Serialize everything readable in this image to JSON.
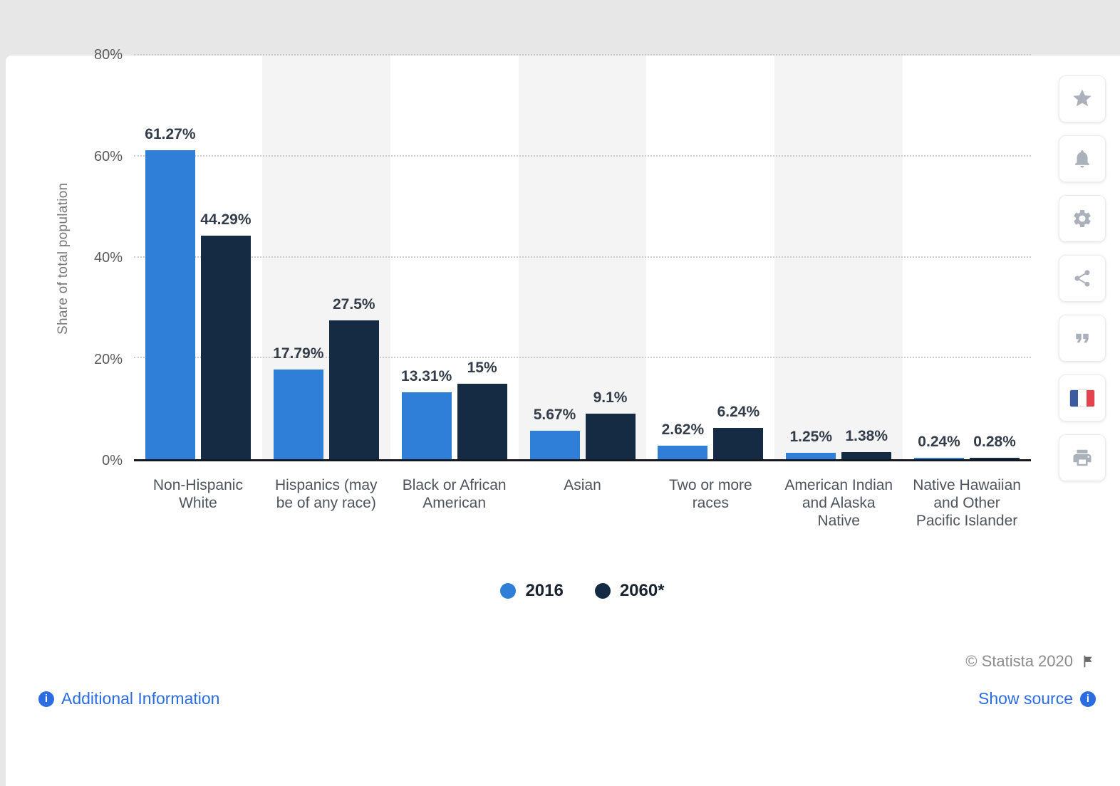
{
  "chart_data": {
    "type": "bar",
    "categories": [
      "Non-Hispanic White",
      "Hispanics (may be of any race)",
      "Black or African American",
      "Asian",
      "Two or more races",
      "American Indian and Alaska Native",
      "Native Hawaiian and Other Pacific Islander"
    ],
    "series": [
      {
        "name": "2016",
        "color": "#2f7ed8",
        "values": [
          61.27,
          17.79,
          13.31,
          5.67,
          2.62,
          1.25,
          0.24
        ],
        "labels": [
          "61.27%",
          "17.79%",
          "13.31%",
          "5.67%",
          "2.62%",
          "1.25%",
          "0.24%"
        ]
      },
      {
        "name": "2060*",
        "color": "#152a43",
        "values": [
          44.29,
          27.5,
          15,
          9.1,
          6.24,
          1.38,
          0.28
        ],
        "labels": [
          "44.29%",
          "27.5%",
          "15%",
          "9.1%",
          "6.24%",
          "1.38%",
          "0.28%"
        ]
      }
    ],
    "xlabel": "",
    "ylabel": "Share of total population",
    "ylim": [
      0,
      80
    ],
    "yticks": [
      {
        "value": 0,
        "label": "0%"
      },
      {
        "value": 20,
        "label": "20%"
      },
      {
        "value": 40,
        "label": "40%"
      },
      {
        "value": 60,
        "label": "60%"
      },
      {
        "value": 80,
        "label": "80%"
      }
    ],
    "grid": "horizontal-dotted",
    "legend_position": "bottom"
  },
  "footer": {
    "copyright": "© Statista 2020",
    "links": {
      "additional_information": "Additional Information",
      "show_source": "Show source"
    }
  },
  "toolbar": {
    "icons": [
      "star-icon",
      "bell-icon",
      "gear-icon",
      "share-icon",
      "quote-icon",
      "flag-fr-icon",
      "print-icon"
    ]
  }
}
